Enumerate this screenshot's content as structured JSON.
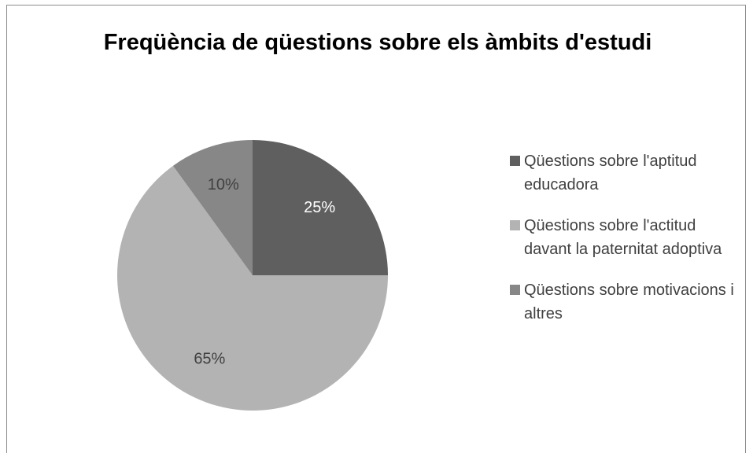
{
  "chart_data": {
    "type": "pie",
    "title": "Freqüència de qüestions sobre els àmbits d'estudi",
    "categories": [
      "Qüestions sobre l'aptitud educadora",
      "Qüestions sobre l'actitud davant la paternitat adoptiva",
      "Qüestions sobre motivacions i altres"
    ],
    "values": [
      25,
      65,
      10
    ],
    "value_labels": [
      "25%",
      "65%",
      "10%"
    ],
    "colors": [
      "#5f5f5f",
      "#b3b3b3",
      "#878787"
    ],
    "legend": "right"
  }
}
